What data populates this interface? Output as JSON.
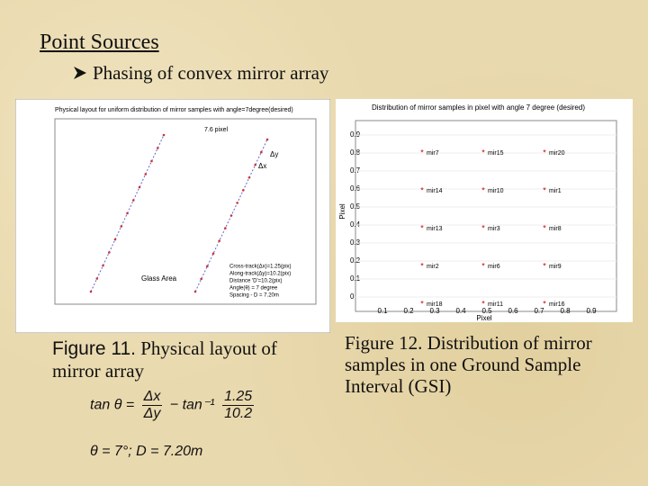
{
  "header": {
    "title": "Point Sources",
    "subtitle": "Phasing of convex mirror array"
  },
  "figures": [
    {
      "image": {
        "title": "Physical layout for uniform distribution of mirror samples with angle=7degree(desired)",
        "pixel_label": "7.6 pixel",
        "dy_label": "Δy",
        "dx_label": "Δx",
        "area_label": "Glass Area",
        "legend": [
          "Cross-track(Δx)=1.25(pix)",
          "Along-track(Δy)=10.2(pix)",
          "Distance 'D'=10.2(pix)",
          "Angle(θ) = 7 degree",
          "Spacing - D = 7.20m"
        ]
      },
      "caption": {
        "label": "Figure 11.",
        "text": "Physical layout of mirror array"
      }
    },
    {
      "image": {
        "title": "Distribution of mirror samples in pixel with angle 7 degree (desired)",
        "y_label": "Pixel",
        "x_label": "Pixel",
        "yticks": [
          "0.9",
          "0.8",
          "0.7",
          "0.6",
          "0.5",
          "0.4",
          "0.3",
          "0.2",
          "0.1",
          "0"
        ],
        "xticks": [
          "0.1",
          "0.2",
          "0.3",
          "0.4",
          "0.5",
          "0.6",
          "0.7",
          "0.8",
          "0.9"
        ],
        "samples": [
          [
            "mir7",
            "mir15",
            "mir20"
          ],
          [
            "mir14",
            "mir10",
            "mir1"
          ],
          [
            "mir13",
            "mir3",
            "mir8"
          ],
          [
            "mir2",
            "mir6",
            "mir9"
          ],
          [
            "mir18",
            "mir11",
            "mir16"
          ]
        ]
      },
      "caption": {
        "label": "Figure 12.",
        "text": "Distribution of mirror samples in one Ground Sample Interval (GSI)"
      }
    }
  ],
  "equation": {
    "lhs": "tan θ =",
    "frac1": {
      "num": "Δx",
      "den": "Δy"
    },
    "op": "− tan⁻¹",
    "frac2": {
      "num": "1.25",
      "den": "10.2"
    },
    "line2": "θ = 7°; D = 7.20m"
  }
}
